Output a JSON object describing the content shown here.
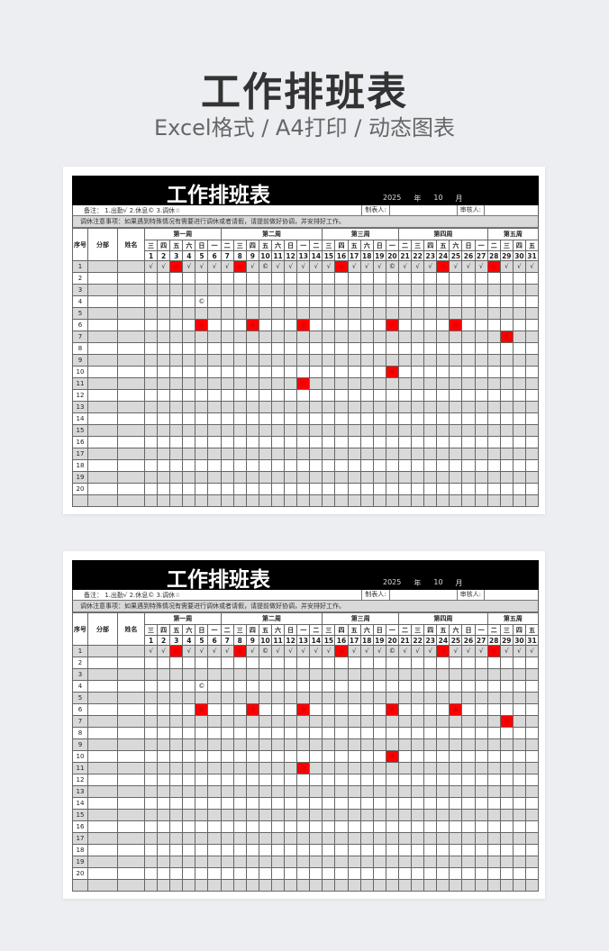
{
  "hero": {
    "title": "工作排班表",
    "subtitle": "Excel格式 / A4打印 / 动态图表"
  },
  "sheet": {
    "title": "工作排班表",
    "year": "2025",
    "year_unit": "年",
    "month": "10",
    "month_unit": "月",
    "note": "备注：  1.出勤√    2.休息©    3.调休☆",
    "maker": "制表人:",
    "reviewer": "审核人:",
    "notice": "调休注意事项：如果遇到特殊情况有需要进行调休或者请假，请提前做好协调，并安排好工作。",
    "headers": {
      "no": "序号",
      "dept": "分部",
      "name": "姓名"
    },
    "weeks": [
      {
        "label": "第一周",
        "span": 6
      },
      {
        "label": "第二周",
        "span": 8
      },
      {
        "label": "第三周",
        "span": 6
      },
      {
        "label": "第四周",
        "span": 7
      },
      {
        "label": "第五周",
        "span": 4
      }
    ],
    "weekdays": [
      "三",
      "四",
      "五",
      "六",
      "日",
      "一",
      "二",
      "三",
      "四",
      "五",
      "六",
      "日",
      "一",
      "二",
      "三",
      "四",
      "五",
      "六",
      "日",
      "一",
      "二",
      "三",
      "四",
      "五",
      "六",
      "日",
      "一",
      "二",
      "三",
      "四",
      "五"
    ],
    "days": [
      1,
      2,
      3,
      4,
      5,
      6,
      7,
      8,
      9,
      10,
      11,
      12,
      13,
      14,
      15,
      16,
      17,
      18,
      19,
      20,
      21,
      22,
      23,
      24,
      25,
      26,
      27,
      28,
      29,
      30,
      31
    ],
    "rest_color": "#ff0000",
    "rows": [
      {
        "no": "1",
        "marks": {
          "1": "√",
          "2": "√",
          "3": "☆",
          "4": "√",
          "5": "√",
          "6": "√",
          "7": "√",
          "8": "☆",
          "9": "√",
          "10": "©",
          "11": "√",
          "12": "√",
          "13": "√",
          "14": "√",
          "15": "√",
          "16": "☆",
          "17": "√",
          "18": "√",
          "19": "√",
          "20": "©",
          "21": "√",
          "22": "√",
          "23": "√",
          "24": "☆",
          "25": "√",
          "26": "√",
          "27": "√",
          "28": "☆",
          "29": "√",
          "30": "√",
          "31": "√"
        }
      },
      {
        "no": "2",
        "marks": {}
      },
      {
        "no": "3",
        "marks": {}
      },
      {
        "no": "4",
        "marks": {
          "5": "©"
        }
      },
      {
        "no": "5",
        "marks": {}
      },
      {
        "no": "6",
        "marks": {
          "5": "☆",
          "9": "☆",
          "13": "☆",
          "20": "☆",
          "25": "☆"
        }
      },
      {
        "no": "7",
        "marks": {
          "29": "☆"
        }
      },
      {
        "no": "8",
        "marks": {}
      },
      {
        "no": "9",
        "marks": {}
      },
      {
        "no": "10",
        "marks": {
          "20": "☆"
        }
      },
      {
        "no": "11",
        "marks": {
          "13": "☆"
        }
      },
      {
        "no": "12",
        "marks": {}
      },
      {
        "no": "13",
        "marks": {}
      },
      {
        "no": "14",
        "marks": {}
      },
      {
        "no": "15",
        "marks": {}
      },
      {
        "no": "16",
        "marks": {}
      },
      {
        "no": "17",
        "marks": {}
      },
      {
        "no": "18",
        "marks": {}
      },
      {
        "no": "19",
        "marks": {}
      },
      {
        "no": "20",
        "marks": {}
      },
      {
        "no": "",
        "marks": {}
      }
    ]
  }
}
